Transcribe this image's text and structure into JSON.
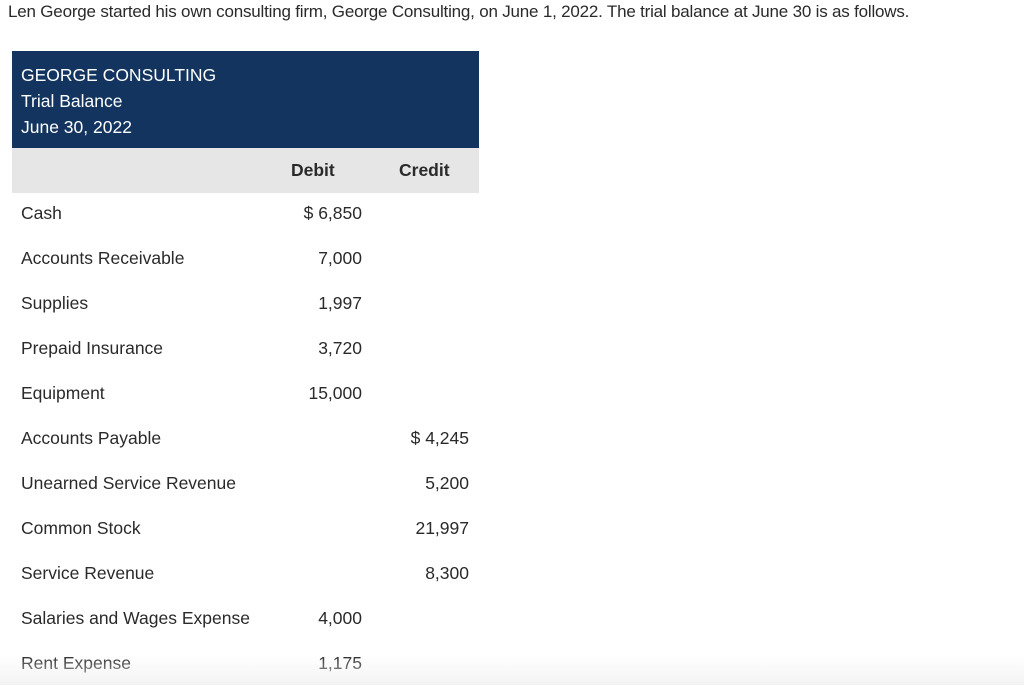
{
  "intro": "Len George started his own consulting firm, George Consulting, on June 1, 2022. The trial balance at June 30 is as follows.",
  "header": {
    "company": "GEORGE CONSULTING",
    "statement": "Trial Balance",
    "date": "June 30, 2022"
  },
  "columns": {
    "debit": "Debit",
    "credit": "Credit"
  },
  "rows": [
    {
      "account": "Cash",
      "debit": "$ 6,850"
    },
    {
      "account": "Accounts Receivable",
      "debit": "7,000"
    },
    {
      "account": "Supplies",
      "debit": "1,997"
    },
    {
      "account": "Prepaid Insurance",
      "debit": "3,720"
    },
    {
      "account": "Equipment",
      "debit": "15,000"
    },
    {
      "account": "Accounts Payable",
      "credit": "$ 4,245"
    },
    {
      "account": "Unearned Service Revenue",
      "credit": "5,200"
    },
    {
      "account": "Common Stock",
      "credit": "21,997"
    },
    {
      "account": "Service Revenue",
      "credit": "8,300"
    },
    {
      "account": "Salaries and Wages Expense",
      "debit": "4,000"
    },
    {
      "account": "Rent Expense",
      "debit": "1,175"
    }
  ]
}
